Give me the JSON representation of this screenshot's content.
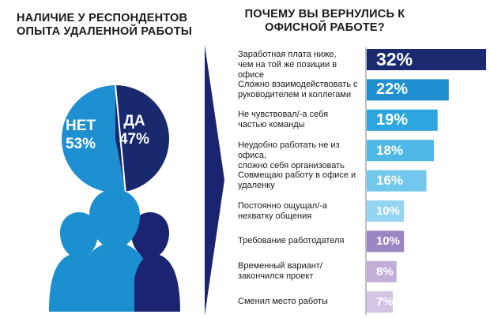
{
  "left_heading": [
    "НАЛИЧИЕ У РЕСПОНДЕНТОВ",
    "ОПЫТА УДАЛЕННОЙ РАБОТЫ"
  ],
  "right_heading": [
    "ПОЧЕМУ ВЫ ВЕРНУЛИСЬ К",
    "ОФИСНОЙ РАБОТЕ?"
  ],
  "pie": {
    "no": {
      "label": "НЕТ",
      "value_text": "53%",
      "value": 53,
      "color": "#1e8fd0"
    },
    "yes": {
      "label": "ДА",
      "value_text": "47%",
      "value": 47,
      "color": "#18296e"
    }
  },
  "colors": {
    "navy": "#1a2470",
    "people": "#1b8fd0",
    "arrow": "#1a2470",
    "axis": "#bfbfbf"
  },
  "chart_data": [
    {
      "type": "pie",
      "categories": [
        "НЕТ",
        "ДА"
      ],
      "values": [
        53,
        47
      ]
    },
    {
      "type": "bar",
      "orientation": "horizontal",
      "categories": [
        "Заработная плата ниже, чем на той же позиции в офисе",
        "Сложно взаимодействовать с руководителем и коллегами",
        "Не чувствовал/-а себя частью команды",
        "Неудобно работать не из офиса, сложно себя организовать",
        "Совмещаю работу в офисе и удаленку",
        "Постоянно ощущал/-а нехватку общения",
        "Требование работодателя",
        "Временный вариант/ закончился проект",
        "Сменил место работы"
      ],
      "values": [
        32,
        22,
        19,
        18,
        16,
        10,
        10,
        8,
        7
      ],
      "unit": "%"
    }
  ],
  "bars": [
    {
      "lines": [
        "Заработная плата ниже,",
        "чем на той же позиции в офисе"
      ],
      "value": 32,
      "label": "32%",
      "color": "#1b2a6e"
    },
    {
      "lines": [
        "Сложно взаимодействовать с",
        "руководителем и коллегами"
      ],
      "value": 22,
      "label": "22%",
      "color": "#1f8fd0"
    },
    {
      "lines": [
        "Не чувствовал/-а себя",
        "частью команды"
      ],
      "value": 19,
      "label": "19%",
      "color": "#2da6e0"
    },
    {
      "lines": [
        "Неудобно работать не из офиса,",
        "сложно себя организовать"
      ],
      "value": 18,
      "label": "18%",
      "color": "#4fb8e6"
    },
    {
      "lines": [
        "Совмещаю работу в офисе и",
        "удаленку"
      ],
      "value": 16,
      "label": "16%",
      "color": "#72c7ec"
    },
    {
      "lines": [
        "Постоянно ощущал/-а",
        "нехватку общения"
      ],
      "value": 10,
      "label": "10%",
      "color": "#94d5f1"
    },
    {
      "lines": [
        "Требование работодателя"
      ],
      "value": 10,
      "label": "10%",
      "color": "#9b86c2"
    },
    {
      "lines": [
        "Временный вариант/",
        "закончился проект"
      ],
      "value": 8,
      "label": "8%",
      "color": "#c3aed8"
    },
    {
      "lines": [
        "Сменил место работы"
      ],
      "value": 7,
      "label": "7%",
      "color": "#d4c4e4"
    }
  ]
}
